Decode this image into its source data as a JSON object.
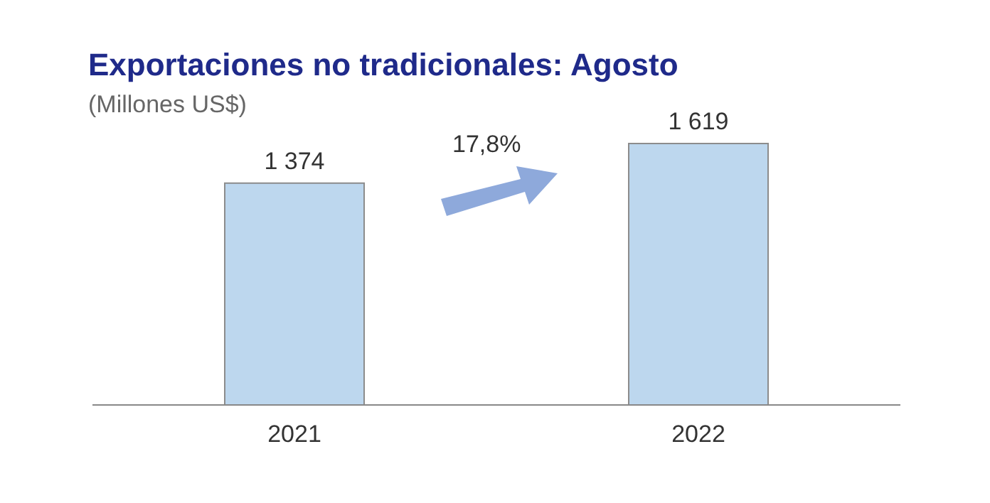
{
  "chart_data": {
    "type": "bar",
    "title": "Exportaciones no tradicionales: Agosto",
    "subtitle": "(Millones US$)",
    "categories": [
      "2021",
      "2022"
    ],
    "values": [
      1374,
      1619
    ],
    "value_labels": [
      "1 374",
      "1 619"
    ],
    "color": "#bdd7ee",
    "annotations": [
      "17,8%"
    ]
  }
}
